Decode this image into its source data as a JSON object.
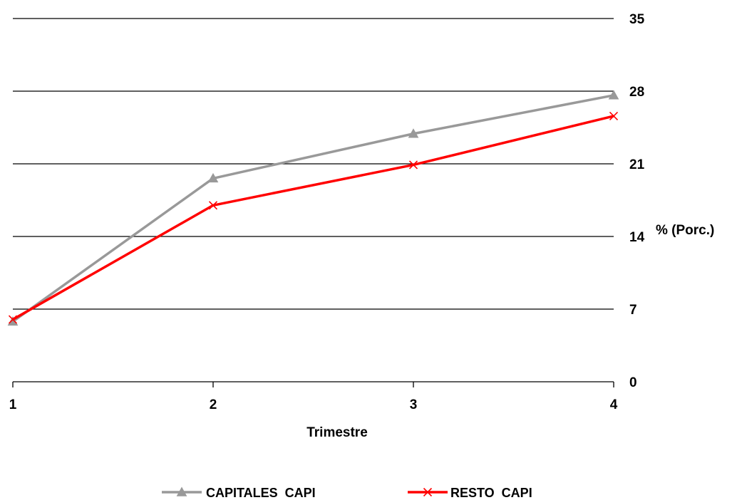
{
  "chart_data": {
    "type": "line",
    "title": "",
    "xlabel": "Trimestre",
    "ylabel": "% (Porc.)",
    "x": [
      1,
      2,
      3,
      4
    ],
    "x_tick_labels": [
      "1",
      "2",
      "3",
      "4"
    ],
    "ylim": [
      0,
      35
    ],
    "y_ticks": [
      0,
      7,
      14,
      21,
      28,
      35
    ],
    "y_tick_labels": [
      "0",
      "7",
      "14",
      "21",
      "28",
      "35"
    ],
    "y_axis_side": "right",
    "grid": "horizontal",
    "legend_position": "bottom",
    "series": [
      {
        "name": "CAPITALES  CAPI",
        "values": [
          5.8,
          19.6,
          23.9,
          27.6
        ],
        "color": "#999999",
        "marker": "triangle"
      },
      {
        "name": "RESTO  CAPI",
        "values": [
          6.0,
          17.0,
          20.9,
          25.6
        ],
        "color": "#ff0000",
        "marker": "x"
      }
    ]
  }
}
